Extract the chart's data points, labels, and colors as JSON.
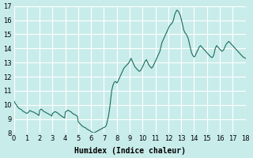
{
  "title": "",
  "xlabel": "Humidex (Indice chaleur)",
  "ylabel": "",
  "bg_color": "#c8ecea",
  "grid_color": "#ffffff",
  "line_color": "#1a6b5a",
  "xlim": [
    0,
    18
  ],
  "ylim": [
    8,
    17
  ],
  "xticks": [
    0,
    1,
    2,
    3,
    4,
    5,
    6,
    7,
    8,
    9,
    10,
    11,
    12,
    13,
    14,
    15,
    16,
    17,
    18
  ],
  "yticks": [
    8,
    9,
    10,
    11,
    12,
    13,
    14,
    15,
    16,
    17
  ],
  "x": [
    0.0,
    0.05,
    0.1,
    0.15,
    0.2,
    0.25,
    0.3,
    0.35,
    0.4,
    0.45,
    0.5,
    0.55,
    0.6,
    0.65,
    0.7,
    0.75,
    0.8,
    0.85,
    0.9,
    0.95,
    1.0,
    1.05,
    1.1,
    1.15,
    1.2,
    1.25,
    1.3,
    1.35,
    1.4,
    1.45,
    1.5,
    1.55,
    1.6,
    1.65,
    1.7,
    1.75,
    1.8,
    1.85,
    1.9,
    1.95,
    2.0,
    2.05,
    2.1,
    2.15,
    2.2,
    2.25,
    2.3,
    2.35,
    2.4,
    2.45,
    2.5,
    2.55,
    2.6,
    2.65,
    2.7,
    2.75,
    2.8,
    2.85,
    2.9,
    2.95,
    3.0,
    3.05,
    3.1,
    3.15,
    3.2,
    3.25,
    3.3,
    3.35,
    3.4,
    3.45,
    3.5,
    3.55,
    3.6,
    3.65,
    3.7,
    3.75,
    3.8,
    3.85,
    3.9,
    3.95,
    4.0,
    4.05,
    4.1,
    4.15,
    4.2,
    4.25,
    4.3,
    4.35,
    4.4,
    4.45,
    4.5,
    4.55,
    4.6,
    4.65,
    4.7,
    4.75,
    4.8,
    4.85,
    4.9,
    4.95,
    5.0,
    5.05,
    5.1,
    5.15,
    5.2,
    5.25,
    5.3,
    5.35,
    5.4,
    5.45,
    5.5,
    5.55,
    5.6,
    5.65,
    5.7,
    5.75,
    5.8,
    5.85,
    5.9,
    5.95,
    6.0,
    6.05,
    6.1,
    6.15,
    6.2,
    6.25,
    6.3,
    6.35,
    6.4,
    6.45,
    6.5,
    6.55,
    6.6,
    6.65,
    6.7,
    6.75,
    6.8,
    6.85,
    6.9,
    6.95,
    7.0,
    7.05,
    7.1,
    7.15,
    7.2,
    7.25,
    7.3,
    7.35,
    7.4,
    7.45,
    7.5,
    7.55,
    7.6,
    7.65,
    7.7,
    7.75,
    7.8,
    7.85,
    7.9,
    7.95,
    8.0,
    8.05,
    8.1,
    8.15,
    8.2,
    8.25,
    8.3,
    8.35,
    8.4,
    8.45,
    8.5,
    8.55,
    8.6,
    8.65,
    8.7,
    8.75,
    8.8,
    8.85,
    8.9,
    8.95,
    9.0,
    9.05,
    9.1,
    9.15,
    9.2,
    9.25,
    9.3,
    9.35,
    9.4,
    9.45,
    9.5,
    9.55,
    9.6,
    9.65,
    9.7,
    9.75,
    9.8,
    9.85,
    9.9,
    9.95,
    10.0,
    10.05,
    10.1,
    10.15,
    10.2,
    10.25,
    10.3,
    10.35,
    10.4,
    10.45,
    10.5,
    10.55,
    10.6,
    10.65,
    10.7,
    10.75,
    10.8,
    10.85,
    10.9,
    10.95,
    11.0,
    11.05,
    11.1,
    11.15,
    11.2,
    11.25,
    11.3,
    11.35,
    11.4,
    11.45,
    11.5,
    11.55,
    11.6,
    11.65,
    11.7,
    11.75,
    11.8,
    11.85,
    11.9,
    11.95,
    12.0,
    12.05,
    12.1,
    12.15,
    12.2,
    12.25,
    12.3,
    12.35,
    12.4,
    12.45,
    12.5,
    12.55,
    12.6,
    12.65,
    12.7,
    12.75,
    12.8,
    12.85,
    12.9,
    12.95,
    13.0,
    13.05,
    13.1,
    13.15,
    13.2,
    13.25,
    13.3,
    13.35,
    13.4,
    13.45,
    13.5,
    13.55,
    13.6,
    13.65,
    13.7,
    13.75,
    13.8,
    13.85,
    13.9,
    13.95,
    14.0,
    14.05,
    14.1,
    14.15,
    14.2,
    14.25,
    14.3,
    14.35,
    14.4,
    14.45,
    14.5,
    14.55,
    14.6,
    14.65,
    14.7,
    14.75,
    14.8,
    14.85,
    14.9,
    14.95,
    15.0,
    15.05,
    15.1,
    15.15,
    15.2,
    15.25,
    15.3,
    15.35,
    15.4,
    15.45,
    15.5,
    15.55,
    15.6,
    15.65,
    15.7,
    15.75,
    15.8,
    15.85,
    15.9,
    15.95,
    16.0,
    16.05,
    16.1,
    16.15,
    16.2,
    16.25,
    16.3,
    16.35,
    16.4,
    16.45,
    16.5,
    16.55,
    16.6,
    16.65,
    16.7,
    16.75,
    16.8,
    16.85,
    16.9,
    16.95,
    17.0,
    17.05,
    17.1,
    17.15,
    17.2,
    17.25,
    17.3,
    17.35,
    17.4,
    17.45,
    17.5,
    17.55,
    17.6,
    17.65,
    17.7,
    17.75,
    17.8,
    17.85,
    17.9,
    17.95,
    18.0
  ],
  "y": [
    10.3,
    10.2,
    10.1,
    10.05,
    10.0,
    9.9,
    9.85,
    9.8,
    9.75,
    9.72,
    9.7,
    9.68,
    9.65,
    9.6,
    9.55,
    9.52,
    9.5,
    9.48,
    9.45,
    9.42,
    9.4,
    9.42,
    9.45,
    9.5,
    9.55,
    9.6,
    9.58,
    9.55,
    9.52,
    9.5,
    9.5,
    9.48,
    9.45,
    9.42,
    9.4,
    9.38,
    9.35,
    9.3,
    9.28,
    9.25,
    9.6,
    9.65,
    9.7,
    9.68,
    9.65,
    9.6,
    9.55,
    9.52,
    9.5,
    9.48,
    9.45,
    9.42,
    9.4,
    9.38,
    9.35,
    9.32,
    9.3,
    9.28,
    9.25,
    9.2,
    9.4,
    9.42,
    9.45,
    9.5,
    9.52,
    9.5,
    9.48,
    9.45,
    9.42,
    9.4,
    9.35,
    9.3,
    9.28,
    9.25,
    9.2,
    9.18,
    9.15,
    9.12,
    9.1,
    9.08,
    9.5,
    9.52,
    9.55,
    9.6,
    9.62,
    9.6,
    9.58,
    9.55,
    9.52,
    9.5,
    9.45,
    9.4,
    9.38,
    9.35,
    9.32,
    9.3,
    9.28,
    9.25,
    9.2,
    9.15,
    8.8,
    8.75,
    8.7,
    8.65,
    8.6,
    8.55,
    8.5,
    8.48,
    8.45,
    8.42,
    8.4,
    8.38,
    8.35,
    8.3,
    8.28,
    8.25,
    8.22,
    8.2,
    8.18,
    8.15,
    8.1,
    8.08,
    8.05,
    8.03,
    8.0,
    8.02,
    8.05,
    8.08,
    8.1,
    8.12,
    8.15,
    8.18,
    8.2,
    8.22,
    8.25,
    8.28,
    8.3,
    8.32,
    8.35,
    8.38,
    8.4,
    8.42,
    8.45,
    8.5,
    8.6,
    8.8,
    9.0,
    9.2,
    9.5,
    9.8,
    10.2,
    10.6,
    11.0,
    11.2,
    11.4,
    11.5,
    11.6,
    11.65,
    11.65,
    11.6,
    11.55,
    11.6,
    11.7,
    11.8,
    11.9,
    12.0,
    12.1,
    12.2,
    12.3,
    12.4,
    12.5,
    12.6,
    12.65,
    12.7,
    12.75,
    12.8,
    12.85,
    12.9,
    12.95,
    13.0,
    13.1,
    13.2,
    13.3,
    13.2,
    13.1,
    13.0,
    12.9,
    12.8,
    12.7,
    12.65,
    12.6,
    12.55,
    12.5,
    12.45,
    12.4,
    12.38,
    12.4,
    12.45,
    12.5,
    12.6,
    12.7,
    12.8,
    12.9,
    13.0,
    13.1,
    13.15,
    13.2,
    13.1,
    13.0,
    12.9,
    12.8,
    12.75,
    12.7,
    12.65,
    12.6,
    12.65,
    12.7,
    12.8,
    12.9,
    13.0,
    13.1,
    13.2,
    13.3,
    13.4,
    13.5,
    13.6,
    13.7,
    13.8,
    14.0,
    14.2,
    14.4,
    14.5,
    14.6,
    14.7,
    14.8,
    14.9,
    15.0,
    15.1,
    15.2,
    15.3,
    15.4,
    15.5,
    15.6,
    15.65,
    15.7,
    15.75,
    15.8,
    15.9,
    16.0,
    16.2,
    16.4,
    16.5,
    16.6,
    16.7,
    16.7,
    16.65,
    16.6,
    16.5,
    16.4,
    16.3,
    16.1,
    15.9,
    15.7,
    15.5,
    15.3,
    15.2,
    15.1,
    15.05,
    15.0,
    14.9,
    14.8,
    14.7,
    14.5,
    14.3,
    14.1,
    13.9,
    13.7,
    13.6,
    13.5,
    13.45,
    13.4,
    13.42,
    13.5,
    13.6,
    13.7,
    13.8,
    13.9,
    14.0,
    14.1,
    14.15,
    14.2,
    14.15,
    14.1,
    14.05,
    14.0,
    13.95,
    13.9,
    13.85,
    13.8,
    13.75,
    13.7,
    13.65,
    13.6,
    13.55,
    13.5,
    13.45,
    13.4,
    13.38,
    13.35,
    13.4,
    13.45,
    13.6,
    13.8,
    14.0,
    14.1,
    14.2,
    14.15,
    14.1,
    14.05,
    14.0,
    13.95,
    13.9,
    13.85,
    13.8,
    13.82,
    13.85,
    13.9,
    14.0,
    14.1,
    14.2,
    14.3,
    14.35,
    14.4,
    14.45,
    14.5,
    14.45,
    14.4,
    14.35,
    14.3,
    14.25,
    14.2,
    14.15,
    14.1,
    14.05,
    14.0,
    13.95,
    13.9,
    13.85,
    13.8,
    13.75,
    13.7,
    13.65,
    13.6,
    13.55,
    13.5,
    13.45,
    13.4,
    13.38,
    13.35,
    13.32,
    13.3
  ]
}
